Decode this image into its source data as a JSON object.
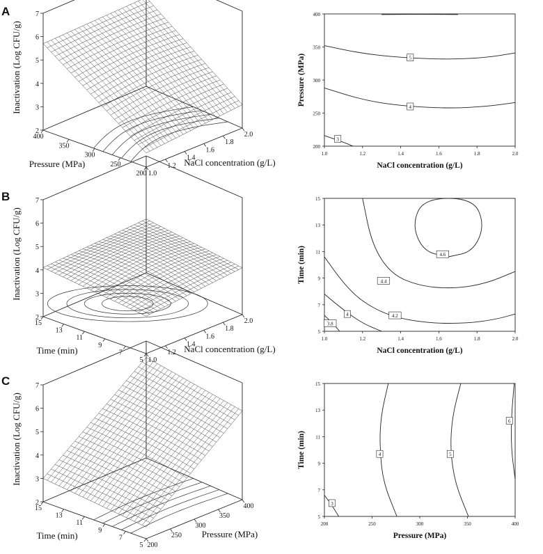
{
  "panels": [
    {
      "letter": "A",
      "surface": {
        "zlabel": "Inactivation (Log CFU/g)",
        "xlabel": "NaCl concentration (g/L)",
        "ylabel": "Pressure (MPa)",
        "z_ticks": [
          "2",
          "3",
          "4",
          "5",
          "6",
          "7"
        ],
        "x_ticks": [
          "1.0",
          "1.2",
          "1.4",
          "1.6",
          "1.8",
          "2.0"
        ],
        "y_ticks": [
          "200",
          "250",
          "300",
          "350",
          "400"
        ]
      },
      "contour": {
        "xlabel": "NaCl concentration (g/L)",
        "ylabel": "Pressure (MPa)",
        "x_ticks": [
          "1.0",
          "1.2",
          "1.4",
          "1.6",
          "1.8",
          "2.0"
        ],
        "y_ticks": [
          "200",
          "250",
          "300",
          "350",
          "400"
        ],
        "level_labels": [
          "3",
          "4",
          "5"
        ]
      }
    },
    {
      "letter": "B",
      "surface": {
        "zlabel": "Inactivation (Log CFU/g)",
        "xlabel": "NaCl concentration (g/L)",
        "ylabel": "Time (min)",
        "z_ticks": [
          "2",
          "3",
          "4",
          "5",
          "6",
          "7"
        ],
        "x_ticks": [
          "1.0",
          "1.2",
          "1.4",
          "1.6",
          "1.8",
          "2.0"
        ],
        "y_ticks": [
          "5",
          "7",
          "9",
          "11",
          "13",
          "15"
        ]
      },
      "contour": {
        "xlabel": "NaCl concentration (g/L)",
        "ylabel": "Time (min)",
        "x_ticks": [
          "1.0",
          "1.2",
          "1.4",
          "1.6",
          "1.8",
          "2.0"
        ],
        "y_ticks": [
          "5",
          "7",
          "9",
          "11",
          "13",
          "15"
        ],
        "level_labels": [
          "3.8",
          "4",
          "4.2",
          "4.4",
          "4.6"
        ]
      }
    },
    {
      "letter": "C",
      "surface": {
        "zlabel": "Inactivation (Log CFU/g)",
        "xlabel": "Pressure (MPa)",
        "ylabel": "Time (min)",
        "z_ticks": [
          "2",
          "3",
          "4",
          "5",
          "6",
          "7"
        ],
        "x_ticks": [
          "200",
          "250",
          "300",
          "350",
          "400"
        ],
        "y_ticks": [
          "5",
          "7",
          "9",
          "11",
          "13",
          "15"
        ]
      },
      "contour": {
        "xlabel": "Pressure (MPa)",
        "ylabel": "Time (min)",
        "x_ticks": [
          "200",
          "250",
          "300",
          "350",
          "400"
        ],
        "y_ticks": [
          "5",
          "7",
          "9",
          "11",
          "13",
          "15"
        ],
        "level_labels": [
          "3",
          "4",
          "5",
          "6"
        ]
      }
    }
  ],
  "chart_data": [
    {
      "type": "surface",
      "panel": "A",
      "title": "",
      "x": {
        "label": "NaCl concentration (g/L)",
        "range": [
          1.0,
          2.0
        ]
      },
      "y": {
        "label": "Pressure (MPa)",
        "range": [
          200,
          400
        ]
      },
      "z": {
        "label": "Inactivation (Log CFU/g)",
        "range": [
          2,
          7
        ]
      },
      "corner_values": [
        {
          "x": 1.0,
          "y": 400,
          "z": 5.7
        },
        {
          "x": 2.0,
          "y": 400,
          "z": 5.8
        },
        {
          "x": 1.0,
          "y": 200,
          "z": 2.6
        },
        {
          "x": 2.0,
          "y": 200,
          "z": 3.0
        }
      ],
      "mid_bulge": 0.3
    },
    {
      "type": "contour",
      "panel": "A",
      "x": {
        "label": "NaCl concentration (g/L)",
        "range": [
          1.0,
          2.0
        ]
      },
      "y": {
        "label": "Pressure (MPa)",
        "range": [
          200,
          400
        ]
      },
      "levels": [
        {
          "value": 3,
          "label": "3",
          "points": [
            [
              1.0,
              216
            ],
            [
              1.1,
              206
            ],
            [
              1.15,
              200
            ]
          ],
          "label_at": [
            1.07,
            211
          ]
        },
        {
          "value": 4,
          "label": "4",
          "points": [
            [
              1.0,
              288
            ],
            [
              1.2,
              270
            ],
            [
              1.4,
              261
            ],
            [
              1.65,
              257
            ],
            [
              1.85,
              260
            ],
            [
              2.0,
              266
            ]
          ],
          "label_at": [
            1.45,
            260
          ]
        },
        {
          "value": 5,
          "label": "5",
          "points": [
            [
              1.0,
              352
            ],
            [
              1.2,
              340
            ],
            [
              1.4,
              334
            ],
            [
              1.65,
              331
            ],
            [
              1.85,
              334
            ],
            [
              2.0,
              341
            ]
          ],
          "label_at": [
            1.45,
            334
          ]
        },
        {
          "value": 6,
          "label": "",
          "points": [
            [
              1.3,
              399
            ],
            [
              1.5,
              399.5
            ],
            [
              1.7,
              399
            ]
          ],
          "label_at": null
        }
      ]
    },
    {
      "type": "surface",
      "panel": "B",
      "title": "",
      "x": {
        "label": "NaCl concentration (g/L)",
        "range": [
          1.0,
          2.0
        ]
      },
      "y": {
        "label": "Time (min)",
        "range": [
          5,
          15
        ]
      },
      "z": {
        "label": "Inactivation (Log CFU/g)",
        "range": [
          2,
          7
        ]
      },
      "corner_values": [
        {
          "x": 1.0,
          "y": 15,
          "z": 4.1
        },
        {
          "x": 2.0,
          "y": 15,
          "z": 4.3
        },
        {
          "x": 1.0,
          "y": 5,
          "z": 3.6
        },
        {
          "x": 2.0,
          "y": 5,
          "z": 4.0
        }
      ],
      "mid_bulge": 0.5
    },
    {
      "type": "contour",
      "panel": "B",
      "x": {
        "label": "NaCl concentration (g/L)",
        "range": [
          1.0,
          2.0
        ]
      },
      "y": {
        "label": "Time (min)",
        "range": [
          5,
          15
        ]
      },
      "center": [
        1.65,
        13.1
      ],
      "levels": [
        {
          "value": 3.8,
          "label": "3.8",
          "points": [
            [
              1.0,
              6.2
            ],
            [
              1.05,
              5.5
            ],
            [
              1.08,
              5.0
            ]
          ],
          "label_at": [
            1.03,
            5.6
          ]
        },
        {
          "value": 4.0,
          "label": "4",
          "points": [
            [
              1.0,
              7.8
            ],
            [
              1.1,
              6.6
            ],
            [
              1.2,
              5.6
            ],
            [
              1.3,
              5.0
            ]
          ],
          "label_at": [
            1.12,
            6.3
          ]
        },
        {
          "value": 4.2,
          "label": "4.2",
          "points": [
            [
              1.0,
              10.6
            ],
            [
              1.1,
              8.6
            ],
            [
              1.2,
              7.2
            ],
            [
              1.35,
              6.1
            ],
            [
              1.55,
              5.6
            ],
            [
              1.75,
              5.6
            ],
            [
              1.9,
              5.9
            ],
            [
              2.0,
              6.3
            ]
          ],
          "label_at": [
            1.37,
            6.2
          ]
        },
        {
          "value": 4.4,
          "label": "4.4",
          "points": [
            [
              1.2,
              15.0
            ],
            [
              1.25,
              11.5
            ],
            [
              1.35,
              9.3
            ],
            [
              1.5,
              8.4
            ],
            [
              1.68,
              8.2
            ],
            [
              1.85,
              8.6
            ],
            [
              2.0,
              9.5
            ]
          ],
          "label_at": [
            1.31,
            8.8
          ]
        },
        {
          "value": 4.6,
          "label": "4.6",
          "points": [
            [
              1.65,
              10.6
            ],
            [
              1.78,
              11.0
            ],
            [
              1.84,
              13.0
            ],
            [
              1.78,
              15.0
            ],
            [
              1.52,
              15.0
            ],
            [
              1.46,
              13.0
            ],
            [
              1.52,
              11.0
            ],
            [
              1.65,
              10.6
            ]
          ],
          "label_at": [
            1.62,
            10.8
          ]
        }
      ]
    },
    {
      "type": "surface",
      "panel": "C",
      "title": "",
      "x": {
        "label": "Pressure (MPa)",
        "range": [
          200,
          400
        ]
      },
      "y": {
        "label": "Time (min)",
        "range": [
          5,
          15
        ]
      },
      "z": {
        "label": "Inactivation (Log CFU/g)",
        "range": [
          2,
          7
        ]
      },
      "corner_values": [
        {
          "x": 200,
          "y": 15,
          "z": 3.0
        },
        {
          "x": 400,
          "y": 15,
          "z": 6.3
        },
        {
          "x": 200,
          "y": 5,
          "z": 2.5
        },
        {
          "x": 400,
          "y": 5,
          "z": 5.8
        }
      ],
      "mid_bulge": 0.15
    },
    {
      "type": "contour",
      "panel": "C",
      "x": {
        "label": "Pressure (MPa)",
        "range": [
          200,
          400
        ]
      },
      "y": {
        "label": "Time (min)",
        "range": [
          5,
          15
        ]
      },
      "levels": [
        {
          "value": 3,
          "label": "3",
          "points": [
            [
              200,
              6.6
            ],
            [
              210,
              5.6
            ],
            [
              215,
              5.0
            ]
          ],
          "label_at": [
            208,
            6.0
          ]
        },
        {
          "value": 4,
          "label": "4",
          "points": [
            [
              267,
              15.0
            ],
            [
              259,
              12.5
            ],
            [
              258,
              10.0
            ],
            [
              262,
              7.5
            ],
            [
              276,
              5.0
            ]
          ],
          "label_at": [
            258,
            9.7
          ]
        },
        {
          "value": 5,
          "label": "5",
          "points": [
            [
              343,
              15.0
            ],
            [
              334,
              12.5
            ],
            [
              332,
              10.0
            ],
            [
              337,
              7.5
            ],
            [
              351,
              5.0
            ]
          ],
          "label_at": [
            332,
            9.7
          ]
        },
        {
          "value": 6,
          "label": "6",
          "points": [
            [
              399,
              15.0
            ],
            [
              396,
              12.5
            ],
            [
              396,
              10.0
            ],
            [
              400,
              7.8
            ]
          ],
          "label_at": [
            394,
            12.2
          ]
        }
      ]
    }
  ]
}
